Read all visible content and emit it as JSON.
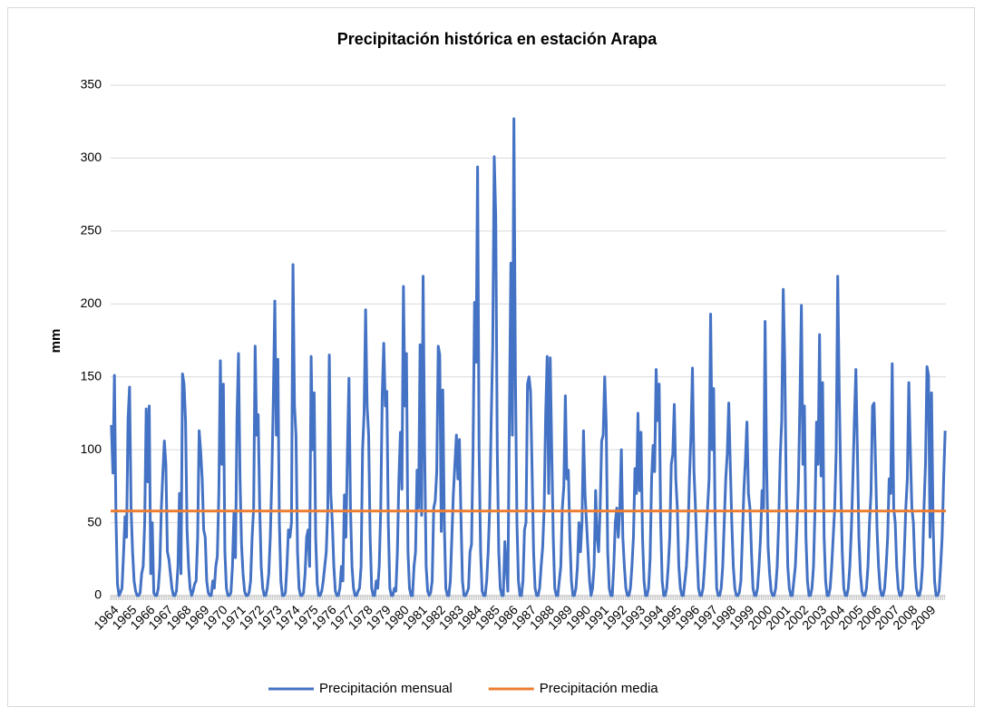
{
  "chart_data": {
    "type": "line",
    "title": "Precipitación histórica en estación Arapa",
    "y_label": "mm",
    "ylim": [
      0,
      350
    ],
    "yticks": [
      0,
      50,
      100,
      150,
      200,
      250,
      300,
      350
    ],
    "grid": true,
    "legend": "bottom",
    "categories": [
      "1964",
      null,
      null,
      null,
      null,
      null,
      null,
      null,
      null,
      null,
      null,
      null,
      "1965",
      null,
      null,
      null,
      null,
      null,
      null,
      null,
      null,
      null,
      null,
      null,
      "1966",
      null,
      null,
      null,
      null,
      null,
      null,
      null,
      null,
      null,
      null,
      null,
      "1967",
      null,
      null,
      null,
      null,
      null,
      null,
      null,
      null,
      null,
      null,
      null,
      "1968",
      null,
      null,
      null,
      null,
      null,
      null,
      null,
      null,
      null,
      null,
      null,
      "1969",
      null,
      null,
      null,
      null,
      null,
      null,
      null,
      null,
      null,
      null,
      null,
      "1970",
      null,
      null,
      null,
      null,
      null,
      null,
      null,
      null,
      null,
      null,
      null,
      "1971",
      null,
      null,
      null,
      null,
      null,
      null,
      null,
      null,
      null,
      null,
      null,
      "1972",
      null,
      null,
      null,
      null,
      null,
      null,
      null,
      null,
      null,
      null,
      null,
      "1973",
      null,
      null,
      null,
      null,
      null,
      null,
      null,
      null,
      null,
      null,
      null,
      "1974",
      null,
      null,
      null,
      null,
      null,
      null,
      null,
      null,
      null,
      null,
      null,
      "1975",
      null,
      null,
      null,
      null,
      null,
      null,
      null,
      null,
      null,
      null,
      null,
      "1976",
      null,
      null,
      null,
      null,
      null,
      null,
      null,
      null,
      null,
      null,
      null,
      "1977",
      null,
      null,
      null,
      null,
      null,
      null,
      null,
      null,
      null,
      null,
      null,
      "1978",
      null,
      null,
      null,
      null,
      null,
      null,
      null,
      null,
      null,
      null,
      null,
      "1979",
      null,
      null,
      null,
      null,
      null,
      null,
      null,
      null,
      null,
      null,
      null,
      "1980",
      null,
      null,
      null,
      null,
      null,
      null,
      null,
      null,
      null,
      null,
      null,
      "1981",
      null,
      null,
      null,
      null,
      null,
      null,
      null,
      null,
      null,
      null,
      null,
      "1982",
      null,
      null,
      null,
      null,
      null,
      null,
      null,
      null,
      null,
      null,
      null,
      "1983",
      null,
      null,
      null,
      null,
      null,
      null,
      null,
      null,
      null,
      null,
      null,
      "1984",
      null,
      null,
      null,
      null,
      null,
      null,
      null,
      null,
      null,
      null,
      null,
      "1985",
      null,
      null,
      null,
      null,
      null,
      null,
      null,
      null,
      null,
      null,
      null,
      "1986",
      null,
      null,
      null,
      null,
      null,
      null,
      null,
      null,
      null,
      null,
      null,
      "1987",
      null,
      null,
      null,
      null,
      null,
      null,
      null,
      null,
      null,
      null,
      null,
      "1988",
      null,
      null,
      null,
      null,
      null,
      null,
      null,
      null,
      null,
      null,
      null,
      "1989",
      null,
      null,
      null,
      null,
      null,
      null,
      null,
      null,
      null,
      null,
      null,
      "1990",
      null,
      null,
      null,
      null,
      null,
      null,
      null,
      null,
      null,
      null,
      null,
      "1991",
      null,
      null,
      null,
      null,
      null,
      null,
      null,
      null,
      null,
      null,
      null,
      "1992",
      null,
      null,
      null,
      null,
      null,
      null,
      null,
      null,
      null,
      null,
      null,
      "1993",
      null,
      null,
      null,
      null,
      null,
      null,
      null,
      null,
      null,
      null,
      null,
      "1994",
      null,
      null,
      null,
      null,
      null,
      null,
      null,
      null,
      null,
      null,
      null,
      "1995",
      null,
      null,
      null,
      null,
      null,
      null,
      null,
      null,
      null,
      null,
      null,
      "1996",
      null,
      null,
      null,
      null,
      null,
      null,
      null,
      null,
      null,
      null,
      null,
      "1997",
      null,
      null,
      null,
      null,
      null,
      null,
      null,
      null,
      null,
      null,
      null,
      "1998",
      null,
      null,
      null,
      null,
      null,
      null,
      null,
      null,
      null,
      null,
      null,
      "1999",
      null,
      null,
      null,
      null,
      null,
      null,
      null,
      null,
      null,
      null,
      null,
      "2000",
      null,
      null,
      null,
      null,
      null,
      null,
      null,
      null,
      null,
      null,
      null,
      "2001",
      null,
      null,
      null,
      null,
      null,
      null,
      null,
      null,
      null,
      null,
      null,
      "2002",
      null,
      null,
      null,
      null,
      null,
      null,
      null,
      null,
      null,
      null,
      null,
      "2003",
      null,
      null,
      null,
      null,
      null,
      null,
      null,
      null,
      null,
      null,
      null,
      "2004",
      null,
      null,
      null,
      null,
      null,
      null,
      null,
      null,
      null,
      null,
      null,
      "2005",
      null,
      null,
      null,
      null,
      null,
      null,
      null,
      null,
      null,
      null,
      null,
      "2006",
      null,
      null,
      null,
      null,
      null,
      null,
      null,
      null,
      null,
      null,
      null,
      "2007",
      null,
      null,
      null,
      null,
      null,
      null,
      null,
      null,
      null,
      null,
      null,
      "2008",
      null,
      null,
      null,
      null,
      null,
      null,
      null,
      null,
      null,
      null,
      null,
      "2009",
      null,
      null,
      null,
      null,
      null,
      null,
      null,
      null,
      null,
      null,
      null
    ],
    "series": [
      {
        "name": "Precipitación mensual",
        "color": "#4472c4",
        "values": [
          117,
          84,
          151,
          55,
          8,
          0,
          2,
          5,
          28,
          54,
          40,
          121,
          143,
          60,
          30,
          10,
          3,
          0,
          0,
          2,
          15,
          20,
          50,
          128,
          78,
          130,
          15,
          50,
          2,
          0,
          0,
          5,
          20,
          60,
          84,
          106,
          90,
          30,
          25,
          15,
          5,
          0,
          0,
          3,
          20,
          70,
          15,
          152,
          145,
          120,
          45,
          20,
          5,
          0,
          3,
          8,
          10,
          40,
          113,
          99,
          80,
          45,
          40,
          10,
          2,
          0,
          0,
          10,
          5,
          20,
          27,
          70,
          161,
          90,
          145,
          30,
          5,
          0,
          0,
          2,
          20,
          57,
          26,
          122,
          166,
          80,
          35,
          15,
          3,
          0,
          0,
          2,
          10,
          40,
          60,
          171,
          110,
          124,
          60,
          20,
          5,
          0,
          0,
          5,
          15,
          40,
          80,
          134,
          202,
          110,
          162,
          50,
          10,
          0,
          0,
          2,
          20,
          45,
          40,
          50,
          227,
          130,
          110,
          30,
          5,
          0,
          0,
          2,
          15,
          40,
          45,
          20,
          164,
          100,
          139,
          40,
          8,
          0,
          0,
          3,
          10,
          20,
          30,
          60,
          165,
          70,
          50,
          20,
          3,
          0,
          0,
          5,
          20,
          10,
          69,
          40,
          100,
          149,
          60,
          20,
          5,
          0,
          0,
          3,
          5,
          20,
          100,
          125,
          196,
          130,
          110,
          40,
          5,
          0,
          0,
          10,
          5,
          20,
          60,
          138,
          173,
          130,
          140,
          50,
          5,
          0,
          0,
          5,
          3,
          30,
          80,
          112,
          73,
          212,
          130,
          166,
          30,
          5,
          0,
          0,
          20,
          30,
          86,
          60,
          172,
          55,
          219,
          100,
          20,
          3,
          0,
          2,
          10,
          60,
          65,
          85,
          171,
          165,
          44,
          141,
          50,
          5,
          0,
          0,
          10,
          40,
          70,
          90,
          110,
          80,
          107,
          55,
          10,
          0,
          0,
          2,
          5,
          30,
          35,
          100,
          201,
          160,
          294,
          100,
          30,
          3,
          0,
          0,
          10,
          30,
          60,
          120,
          171,
          301,
          260,
          100,
          30,
          5,
          0,
          0,
          37,
          20,
          3,
          120,
          228,
          110,
          327,
          150,
          50,
          10,
          0,
          0,
          10,
          45,
          50,
          145,
          150,
          140,
          87,
          30,
          5,
          0,
          0,
          5,
          20,
          33,
          60,
          125,
          164,
          70,
          163,
          100,
          40,
          5,
          0,
          0,
          10,
          20,
          60,
          75,
          137,
          80,
          86,
          40,
          10,
          0,
          0,
          5,
          20,
          50,
          30,
          50,
          113,
          70,
          50,
          30,
          10,
          0,
          5,
          20,
          72,
          40,
          30,
          60,
          106,
          110,
          150,
          118,
          30,
          5,
          0,
          0,
          20,
          50,
          60,
          40,
          60,
          100,
          40,
          20,
          5,
          0,
          0,
          5,
          20,
          40,
          87,
          70,
          125,
          72,
          112,
          40,
          10,
          0,
          0,
          5,
          25,
          80,
          103,
          85,
          155,
          120,
          145,
          50,
          10,
          0,
          0,
          5,
          20,
          40,
          90,
          97,
          131,
          80,
          60,
          20,
          5,
          0,
          0,
          10,
          20,
          40,
          80,
          110,
          156,
          86,
          60,
          30,
          5,
          0,
          0,
          5,
          20,
          40,
          60,
          80,
          193,
          100,
          142,
          50,
          5,
          0,
          0,
          5,
          20,
          50,
          80,
          97,
          132,
          90,
          50,
          20,
          5,
          0,
          0,
          2,
          10,
          40,
          72,
          93,
          119,
          70,
          60,
          30,
          5,
          0,
          0,
          5,
          20,
          40,
          72,
          60,
          188,
          90,
          33,
          15,
          3,
          0,
          0,
          5,
          20,
          50,
          95,
          120,
          210,
          160,
          70,
          20,
          5,
          0,
          0,
          10,
          20,
          45,
          76,
          132,
          199,
          90,
          130,
          40,
          10,
          0,
          0,
          5,
          20,
          60,
          119,
          90,
          179,
          82,
          146,
          40,
          10,
          0,
          0,
          5,
          20,
          40,
          60,
          100,
          219,
          140,
          80,
          30,
          5,
          0,
          0,
          5,
          20,
          45,
          80,
          120,
          155,
          100,
          40,
          15,
          3,
          0,
          0,
          5,
          20,
          50,
          70,
          130,
          132,
          90,
          45,
          20,
          5,
          0,
          0,
          5,
          20,
          40,
          80,
          70,
          159,
          60,
          50,
          20,
          5,
          0,
          0,
          5,
          30,
          60,
          80,
          146,
          100,
          60,
          50,
          20,
          5,
          0,
          0,
          5,
          20,
          60,
          90,
          157,
          151,
          40,
          139,
          50,
          10,
          0,
          0,
          3,
          20,
          40,
          80,
          113
        ]
      }
    ],
    "mean_line": {
      "name": "Precipitación media",
      "color": "#ed7d31",
      "value": 58
    }
  }
}
